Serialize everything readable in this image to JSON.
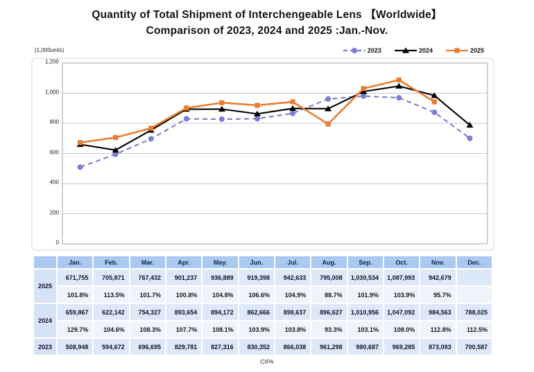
{
  "title": {
    "line1": "Quantity of Total Shipment of Interchengeable Lens 【Worldwide】",
    "line2": "Comparison of 2023, 2024 and 2025 :Jan.-Nov."
  },
  "y_axis": {
    "unit_label": "(1,000units)",
    "ticks": [
      "1,200",
      "1,000",
      "800",
      "600",
      "400",
      "200",
      "0"
    ]
  },
  "chart_data": {
    "type": "line",
    "title": "Quantity of Total Shipment of Interchengeable Lens 【Worldwide】 Comparison of 2023, 2024 and 2025 :Jan.-Nov.",
    "ylabel": "(1,000units)",
    "ylim": [
      0,
      1200
    ],
    "ytick_interval": 200,
    "grid": true,
    "legend_position": "top-right",
    "categories": [
      "Jan.",
      "Feb.",
      "Mar.",
      "Apr.",
      "May.",
      "Jun.",
      "Jul.",
      "Aug.",
      "Sep.",
      "Oct.",
      "Nov.",
      "Dec."
    ],
    "series": [
      {
        "name": "2023",
        "color": "#7c7cd1",
        "line_style": "dashed",
        "marker": "circle",
        "values": [
          508.948,
          594.672,
          696.695,
          829.781,
          827.316,
          830.352,
          866.038,
          961.298,
          980.687,
          969.285,
          873.093,
          700.587
        ]
      },
      {
        "name": "2024",
        "color": "#000000",
        "line_style": "solid",
        "marker": "triangle",
        "values": [
          659.867,
          622.142,
          754.327,
          893.654,
          894.172,
          862.666,
          898.637,
          896.627,
          1010.956,
          1047.092,
          984.563,
          788.025
        ]
      },
      {
        "name": "2025",
        "color": "#e87d31",
        "line_style": "solid",
        "marker": "square",
        "values": [
          671.755,
          705.871,
          767.432,
          901.237,
          936.889,
          919.398,
          942.633,
          795.008,
          1030.534,
          1087.993,
          942.679
        ]
      }
    ]
  },
  "table": {
    "columns": [
      "",
      "Jan.",
      "Feb.",
      "Mar.",
      "Apr.",
      "May.",
      "Jun.",
      "Jul.",
      "Aug.",
      "Sep.",
      "Oct.",
      "Nov.",
      "Dec."
    ],
    "groups": [
      {
        "label": "2025",
        "values": [
          "671,755",
          "705,871",
          "767,432",
          "901,237",
          "936,889",
          "919,398",
          "942,633",
          "795,008",
          "1,030,534",
          "1,087,993",
          "942,679",
          ""
        ],
        "percents": [
          "101.8%",
          "113.5%",
          "101.7%",
          "100.8%",
          "104.8%",
          "106.6%",
          "104.9%",
          "88.7%",
          "101.9%",
          "103.9%",
          "95.7%",
          ""
        ]
      },
      {
        "label": "2024",
        "values": [
          "659,867",
          "622,142",
          "754,327",
          "893,654",
          "894,172",
          "862,666",
          "898,637",
          "896,627",
          "1,010,956",
          "1,047,092",
          "984,563",
          "788,025"
        ],
        "percents": [
          "129.7%",
          "104.6%",
          "108.3%",
          "107.7%",
          "108.1%",
          "103.9%",
          "103.8%",
          "93.3%",
          "103.1%",
          "108.0%",
          "112.8%",
          "112.5%"
        ]
      },
      {
        "label": "2023",
        "values": [
          "508,948",
          "594,672",
          "696,695",
          "829,781",
          "827,316",
          "830,352",
          "866,038",
          "961,298",
          "980,687",
          "969,285",
          "873,093",
          "700,587"
        ]
      }
    ]
  },
  "footer": {
    "source": "CIPA"
  },
  "colors": {
    "grid": "#c9c9c9",
    "plot_border": "#a6a6a6",
    "outer_frame": "#d9d9d9",
    "header_bg": "#a9c9f2",
    "value_bg": "#dde8f8",
    "percent_bg": "#eff4fc"
  }
}
